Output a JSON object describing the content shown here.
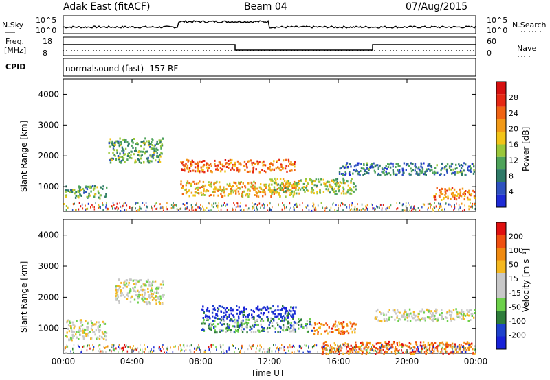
{
  "header": {
    "title": "Adak East (fitACF)",
    "beam": "Beam 04",
    "date": "07/Aug/2015"
  },
  "top_panels": {
    "nsky_label": "N.Sky",
    "nsky_ticks": [
      "10^5",
      "10^0"
    ],
    "nsearch_label": "N.Search",
    "nsearch_ticks": [
      "10^5",
      "10^0"
    ],
    "freq_label": "Freq.",
    "freq_unit": "[MHz]",
    "freq_ticks": [
      "18",
      "8"
    ],
    "nave_label": "Nave",
    "nave_ticks": [
      "60",
      "0"
    ],
    "cpid_label": "CPID",
    "cpid_text": "normalsound (fast) -157 RF"
  },
  "colors": {
    "power_scale": [
      "#1e2bd6",
      "#2e52c0",
      "#2f7a68",
      "#4ea35a",
      "#9ac73a",
      "#f2c418",
      "#f29a18",
      "#f06414",
      "#e62814",
      "#d61010"
    ],
    "velocity_scale": [
      "#1822d8",
      "#1e42cc",
      "#2e7d3a",
      "#6cd04a",
      "#c8c8c8",
      "#c8c8c8",
      "#f5b820",
      "#f08a10",
      "#f05010",
      "#e01010"
    ]
  },
  "chart_data": [
    {
      "type": "heatmap",
      "name": "power",
      "ylabel": "Slant Range [km]",
      "ylim": [
        200,
        4500
      ],
      "yticks": [
        "4000",
        "3000",
        "2000",
        "1000"
      ],
      "colorbar_label": "Power [dB]",
      "colorbar_ticks": [
        "28",
        "24",
        "20",
        "16",
        "12",
        "8",
        "4"
      ],
      "x_range_hours": [
        0,
        24
      ],
      "blobs": [
        {
          "t0": 0.1,
          "t1": 2.5,
          "r0": 650,
          "r1": 1050,
          "level": 0.35
        },
        {
          "t0": 2.6,
          "t1": 5.8,
          "r0": 1800,
          "r1": 2600,
          "level": 0.35
        },
        {
          "t0": 6.8,
          "t1": 13.5,
          "r0": 1500,
          "r1": 1900,
          "level": 0.75
        },
        {
          "t0": 6.8,
          "t1": 13.5,
          "r0": 700,
          "r1": 1200,
          "level": 0.6
        },
        {
          "t0": 12.0,
          "t1": 17.0,
          "r0": 800,
          "r1": 1300,
          "level": 0.45
        },
        {
          "t0": 16.0,
          "t1": 23.9,
          "r0": 1400,
          "r1": 1800,
          "level": 0.25
        },
        {
          "t0": 21.5,
          "t1": 23.9,
          "r0": 600,
          "r1": 1000,
          "level": 0.7
        }
      ]
    },
    {
      "type": "heatmap",
      "name": "velocity",
      "ylabel": "Slant Range [km]",
      "ylim": [
        200,
        4500
      ],
      "yticks": [
        "4000",
        "3000",
        "2000",
        "1000"
      ],
      "colorbar_label": "Velocity [m s⁻¹]",
      "colorbar_ticks": [
        "200",
        "100",
        "50",
        "15",
        "-15",
        "-50",
        "-100",
        "-200"
      ],
      "xlabel": "Time UT",
      "xticks": [
        "00:00",
        "04:00",
        "08:00",
        "12:00",
        "16:00",
        "20:00",
        "00:00"
      ],
      "x_range_hours": [
        0,
        24
      ],
      "blobs": [
        {
          "t0": 0.1,
          "t1": 2.5,
          "r0": 650,
          "r1": 1300,
          "level": 0.5
        },
        {
          "t0": 3.0,
          "t1": 5.8,
          "r0": 1800,
          "r1": 2600,
          "level": 0.5
        },
        {
          "t0": 8.0,
          "t1": 13.5,
          "r0": 1350,
          "r1": 1750,
          "level": 0.05
        },
        {
          "t0": 8.0,
          "t1": 14.5,
          "r0": 900,
          "r1": 1350,
          "level": 0.3
        },
        {
          "t0": 14.5,
          "t1": 17.0,
          "r0": 850,
          "r1": 1250,
          "level": 0.75
        },
        {
          "t0": 18.0,
          "t1": 23.9,
          "r0": 1250,
          "r1": 1650,
          "level": 0.5
        },
        {
          "t0": 15.0,
          "t1": 23.9,
          "r0": 200,
          "r1": 600,
          "level": 0.8
        }
      ]
    }
  ]
}
